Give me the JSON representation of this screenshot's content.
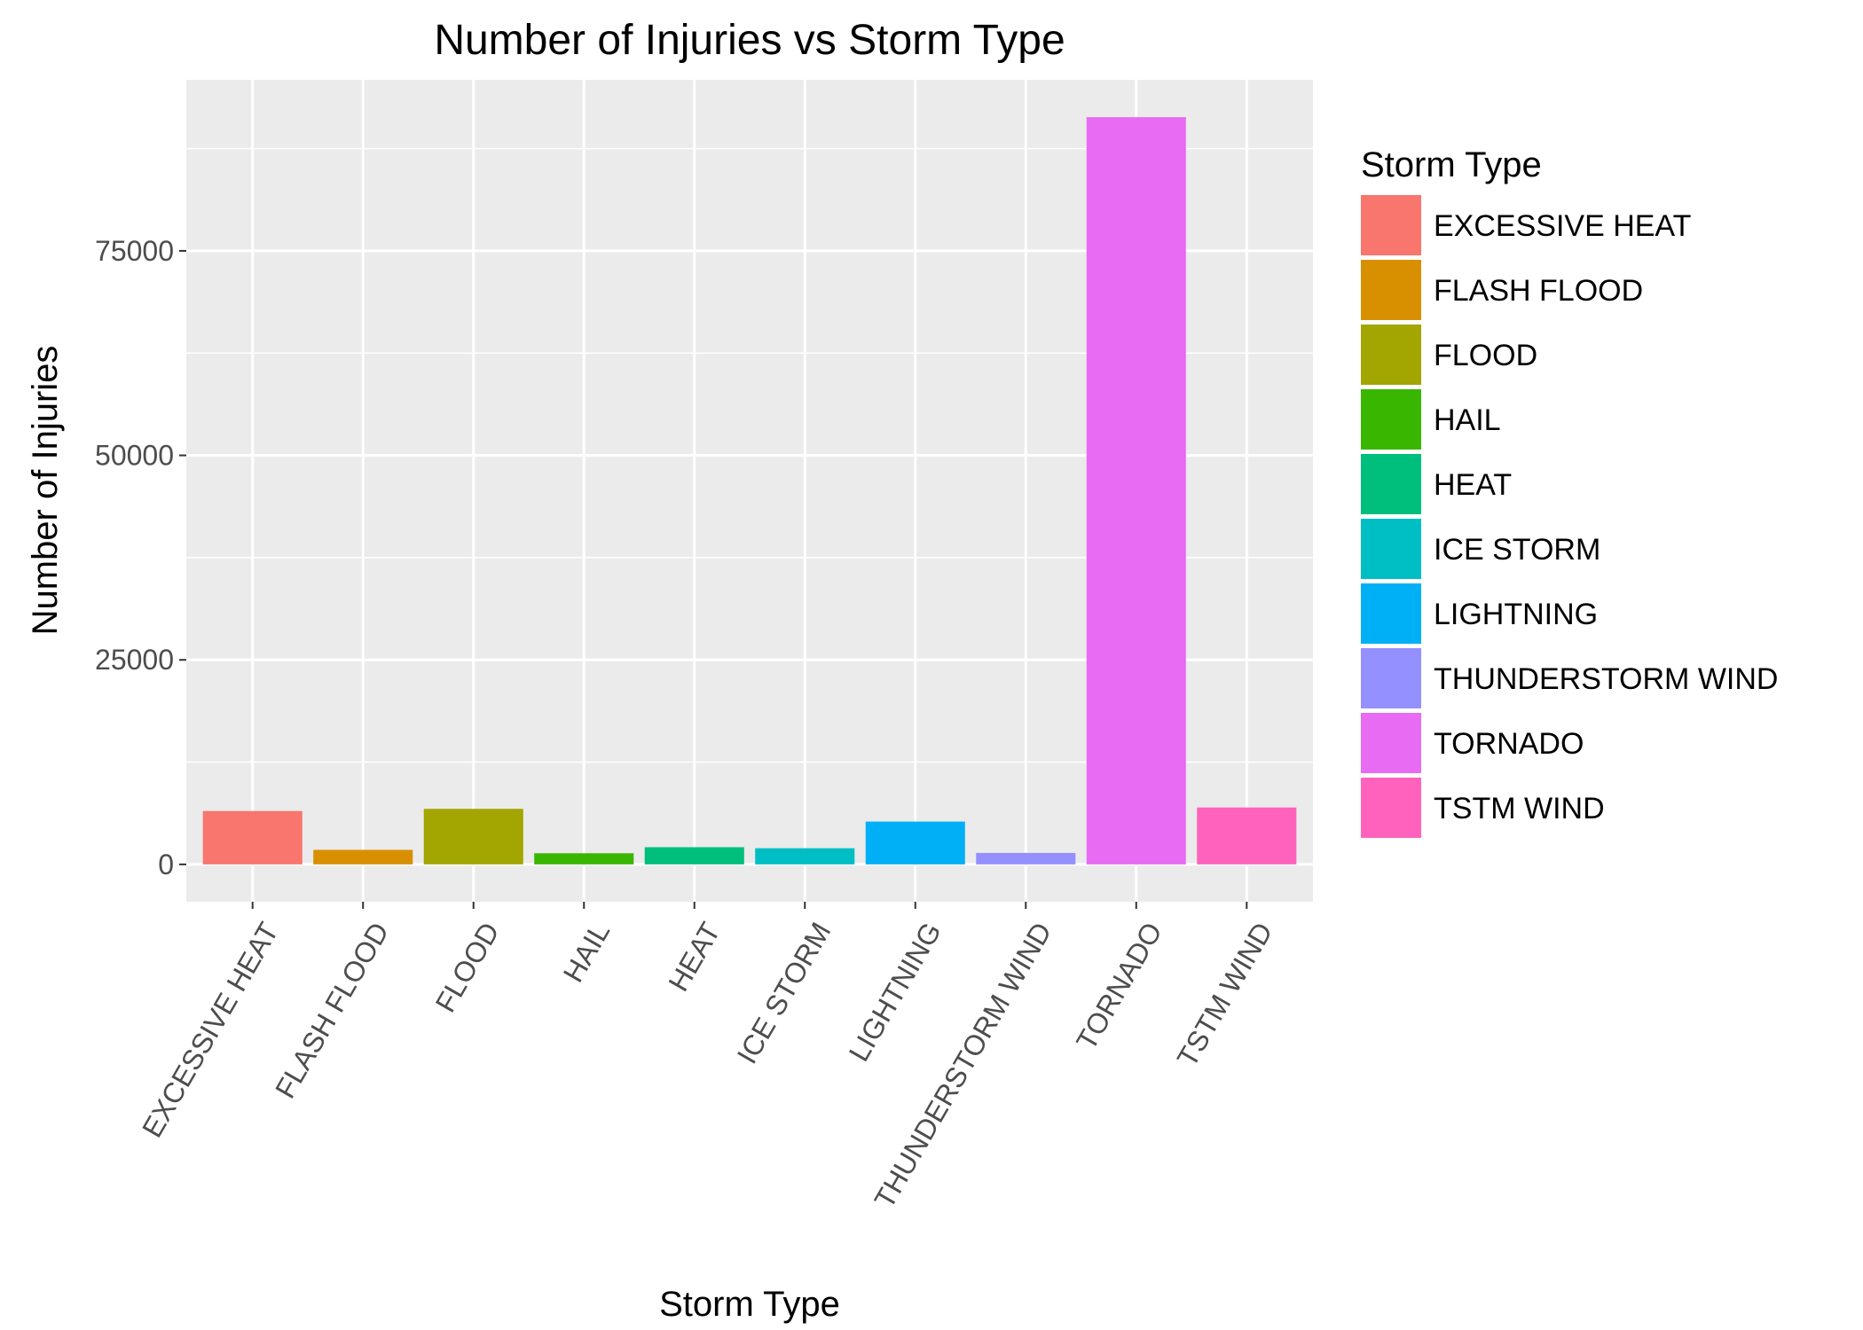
{
  "chart_data": {
    "type": "bar",
    "title": "Number of Injuries vs Storm Type",
    "xlabel": "Storm Type",
    "ylabel": "Number of Injuries",
    "categories": [
      "EXCESSIVE HEAT",
      "FLASH FLOOD",
      "FLOOD",
      "HAIL",
      "HEAT",
      "ICE STORM",
      "LIGHTNING",
      "THUNDERSTORM WIND",
      "TORNADO",
      "TSTM WIND"
    ],
    "values": [
      6525,
      1777,
      6789,
      1361,
      2100,
      1975,
      5230,
      1400,
      91346,
      6957
    ],
    "colors": [
      "#F8766D",
      "#D89000",
      "#A3A500",
      "#39B600",
      "#00BF7D",
      "#00BFC4",
      "#00B0F6",
      "#9590FF",
      "#E76BF3",
      "#FF62BC"
    ],
    "ylim": [
      -4567,
      95913
    ],
    "yticks": [
      0,
      25000,
      50000,
      75000
    ],
    "ytick_labels": [
      "0",
      "25000",
      "50000",
      "75000"
    ],
    "grid": true,
    "legend": {
      "title": "Storm Type",
      "position": "right"
    }
  }
}
